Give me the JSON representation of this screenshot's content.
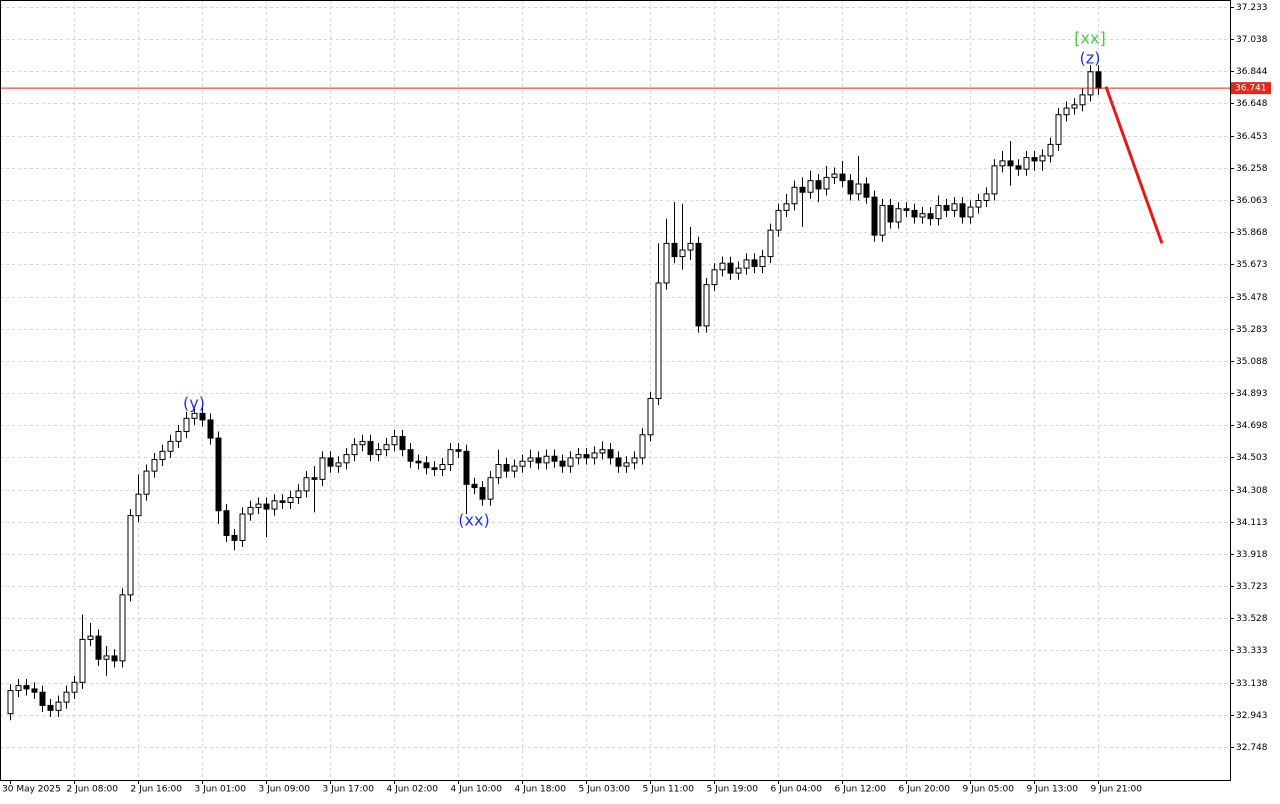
{
  "chart_data": {
    "type": "candlestick",
    "categories": [
      "30 May 2025",
      null,
      null,
      null,
      null,
      null,
      null,
      null,
      "2 Jun 08:00",
      null,
      null,
      null,
      null,
      null,
      null,
      null,
      "2 Jun 16:00",
      null,
      null,
      null,
      null,
      null,
      null,
      null,
      "3 Jun 01:00",
      null,
      null,
      null,
      null,
      null,
      null,
      null,
      "3 Jun 09:00",
      null,
      null,
      null,
      null,
      null,
      null,
      null,
      "3 Jun 17:00",
      null,
      null,
      null,
      null,
      null,
      null,
      null,
      "4 Jun 02:00",
      null,
      null,
      null,
      null,
      null,
      null,
      null,
      "4 Jun 10:00",
      null,
      null,
      null,
      null,
      null,
      null,
      null,
      "4 Jun 18:00",
      null,
      null,
      null,
      null,
      null,
      null,
      null,
      "5 Jun 03:00",
      null,
      null,
      null,
      null,
      null,
      null,
      null,
      "5 Jun 11:00",
      null,
      null,
      null,
      null,
      null,
      null,
      null,
      "5 Jun 19:00",
      null,
      null,
      null,
      null,
      null,
      null,
      null,
      "6 Jun 04:00",
      null,
      null,
      null,
      null,
      null,
      null,
      null,
      "6 Jun 12:00",
      null,
      null,
      null,
      null,
      null,
      null,
      null,
      "6 Jun 20:00",
      null,
      null,
      null,
      null,
      null,
      null,
      null,
      "9 Jun 05:00",
      null,
      null,
      null,
      null,
      null,
      null,
      null,
      "9 Jun 13:00",
      null,
      null,
      null,
      null,
      null,
      null,
      null,
      "9 Jun 21:00"
    ],
    "series": [
      {
        "color_up": "#ffffff",
        "color_down": "#000000",
        "values": [
          [
            32.95,
            33.13,
            32.91,
            33.09
          ],
          [
            33.09,
            33.16,
            33.05,
            33.12
          ],
          [
            33.12,
            33.16,
            33.06,
            33.1
          ],
          [
            33.1,
            33.14,
            33.04,
            33.08
          ],
          [
            33.08,
            33.12,
            32.96,
            33.0
          ],
          [
            33.0,
            33.04,
            32.93,
            32.97
          ],
          [
            32.97,
            33.06,
            32.93,
            33.02
          ],
          [
            33.02,
            33.12,
            32.98,
            33.08
          ],
          [
            33.08,
            33.18,
            33.04,
            33.14
          ],
          [
            33.14,
            33.55,
            33.1,
            33.4
          ],
          [
            33.4,
            33.5,
            33.36,
            33.42
          ],
          [
            33.42,
            33.46,
            33.24,
            33.28
          ],
          [
            33.28,
            33.36,
            33.18,
            33.3
          ],
          [
            33.3,
            33.34,
            33.23,
            33.27
          ],
          [
            33.27,
            33.71,
            33.23,
            33.67
          ],
          [
            33.67,
            34.19,
            33.63,
            34.15
          ],
          [
            34.15,
            34.4,
            34.11,
            34.28
          ],
          [
            34.28,
            34.46,
            34.24,
            34.42
          ],
          [
            34.42,
            34.53,
            34.38,
            34.49
          ],
          [
            34.49,
            34.58,
            34.45,
            34.54
          ],
          [
            34.54,
            34.64,
            34.5,
            34.6
          ],
          [
            34.6,
            34.7,
            34.56,
            34.66
          ],
          [
            34.66,
            34.78,
            34.62,
            34.74
          ],
          [
            34.74,
            34.8,
            34.7,
            34.77
          ],
          [
            34.77,
            34.81,
            34.69,
            34.73
          ],
          [
            34.73,
            34.77,
            34.58,
            34.62
          ],
          [
            34.62,
            34.66,
            34.1,
            34.18
          ],
          [
            34.18,
            34.22,
            33.99,
            34.03
          ],
          [
            34.03,
            34.07,
            33.94,
            34.0
          ],
          [
            34.0,
            34.2,
            33.96,
            34.16
          ],
          [
            34.16,
            34.24,
            34.12,
            34.2
          ],
          [
            34.2,
            34.26,
            34.16,
            34.22
          ],
          [
            34.22,
            34.26,
            34.02,
            34.19
          ],
          [
            34.19,
            34.28,
            34.15,
            34.24
          ],
          [
            34.24,
            34.28,
            34.19,
            34.23
          ],
          [
            34.23,
            34.3,
            34.19,
            34.26
          ],
          [
            34.26,
            34.34,
            34.22,
            34.3
          ],
          [
            34.3,
            34.42,
            34.26,
            34.38
          ],
          [
            34.38,
            34.45,
            34.17,
            34.37
          ],
          [
            34.37,
            34.54,
            34.33,
            34.5
          ],
          [
            34.5,
            34.54,
            34.41,
            34.45
          ],
          [
            34.45,
            34.51,
            34.41,
            34.47
          ],
          [
            34.47,
            34.56,
            34.43,
            34.52
          ],
          [
            34.52,
            34.62,
            34.48,
            34.58
          ],
          [
            34.58,
            34.64,
            34.54,
            34.6
          ],
          [
            34.6,
            34.64,
            34.48,
            34.52
          ],
          [
            34.52,
            34.59,
            34.48,
            34.55
          ],
          [
            34.55,
            34.62,
            34.51,
            34.58
          ],
          [
            34.58,
            34.67,
            34.54,
            34.63
          ],
          [
            34.63,
            34.67,
            34.51,
            34.55
          ],
          [
            34.55,
            34.59,
            34.44,
            34.48
          ],
          [
            34.48,
            34.52,
            34.43,
            34.47
          ],
          [
            34.47,
            34.51,
            34.4,
            34.44
          ],
          [
            34.44,
            34.48,
            34.39,
            34.43
          ],
          [
            34.43,
            34.5,
            34.39,
            34.46
          ],
          [
            34.46,
            34.59,
            34.42,
            34.55
          ],
          [
            34.55,
            34.59,
            34.5,
            34.54
          ],
          [
            34.54,
            34.58,
            34.16,
            34.34
          ],
          [
            34.34,
            34.38,
            34.28,
            34.32
          ],
          [
            34.32,
            34.36,
            34.21,
            34.25
          ],
          [
            34.25,
            34.42,
            34.21,
            34.38
          ],
          [
            34.38,
            34.55,
            34.34,
            34.46
          ],
          [
            34.46,
            34.5,
            34.38,
            34.42
          ],
          [
            34.42,
            34.49,
            34.38,
            34.45
          ],
          [
            34.45,
            34.52,
            34.41,
            34.48
          ],
          [
            34.48,
            34.55,
            34.44,
            34.5
          ],
          [
            34.5,
            34.54,
            34.43,
            34.47
          ],
          [
            34.47,
            34.55,
            34.43,
            34.51
          ],
          [
            34.51,
            34.55,
            34.44,
            34.48
          ],
          [
            34.48,
            34.52,
            34.41,
            34.45
          ],
          [
            34.45,
            34.54,
            34.41,
            34.5
          ],
          [
            34.5,
            34.56,
            34.46,
            34.52
          ],
          [
            34.52,
            34.56,
            34.46,
            34.5
          ],
          [
            34.5,
            34.57,
            34.46,
            34.53
          ],
          [
            34.53,
            34.6,
            34.49,
            34.55
          ],
          [
            34.55,
            34.59,
            34.46,
            34.5
          ],
          [
            34.5,
            34.54,
            34.41,
            34.45
          ],
          [
            34.45,
            34.51,
            34.41,
            34.47
          ],
          [
            34.47,
            34.54,
            34.43,
            34.5
          ],
          [
            34.5,
            34.68,
            34.46,
            34.64
          ],
          [
            34.64,
            34.9,
            34.6,
            34.86
          ],
          [
            34.86,
            35.8,
            34.82,
            35.56
          ],
          [
            35.56,
            35.95,
            35.52,
            35.8
          ],
          [
            35.8,
            36.05,
            35.68,
            35.72
          ],
          [
            35.72,
            36.04,
            35.64,
            35.76
          ],
          [
            35.76,
            35.9,
            35.7,
            35.8
          ],
          [
            35.8,
            35.84,
            35.26,
            35.3
          ],
          [
            35.3,
            35.59,
            35.26,
            35.55
          ],
          [
            35.55,
            35.68,
            35.51,
            35.64
          ],
          [
            35.64,
            35.72,
            35.6,
            35.68
          ],
          [
            35.68,
            35.72,
            35.58,
            35.62
          ],
          [
            35.62,
            35.69,
            35.58,
            35.65
          ],
          [
            35.65,
            35.74,
            35.61,
            35.7
          ],
          [
            35.7,
            35.74,
            35.62,
            35.66
          ],
          [
            35.66,
            35.76,
            35.62,
            35.72
          ],
          [
            35.72,
            35.92,
            35.68,
            35.88
          ],
          [
            35.88,
            36.04,
            35.84,
            36.0
          ],
          [
            36.0,
            36.1,
            35.96,
            36.04
          ],
          [
            36.04,
            36.18,
            36.0,
            36.14
          ],
          [
            36.14,
            36.2,
            35.9,
            36.11
          ],
          [
            36.11,
            36.24,
            36.07,
            36.18
          ],
          [
            36.18,
            36.22,
            36.05,
            36.13
          ],
          [
            36.13,
            36.27,
            36.09,
            36.2
          ],
          [
            36.2,
            36.26,
            36.16,
            36.22
          ],
          [
            36.22,
            36.3,
            36.14,
            36.18
          ],
          [
            36.18,
            36.22,
            36.06,
            36.1
          ],
          [
            36.1,
            36.33,
            36.06,
            36.16
          ],
          [
            36.16,
            36.2,
            36.04,
            36.08
          ],
          [
            36.08,
            36.12,
            35.81,
            35.85
          ],
          [
            35.85,
            36.07,
            35.81,
            36.03
          ],
          [
            36.03,
            36.07,
            35.89,
            35.93
          ],
          [
            35.93,
            36.05,
            35.89,
            36.01
          ],
          [
            36.01,
            36.05,
            35.96,
            36.0
          ],
          [
            36.0,
            36.04,
            35.92,
            35.96
          ],
          [
            35.96,
            36.02,
            35.92,
            35.98
          ],
          [
            35.98,
            36.02,
            35.91,
            35.95
          ],
          [
            35.95,
            36.09,
            35.91,
            36.03
          ],
          [
            36.03,
            36.07,
            35.96,
            36.0
          ],
          [
            36.0,
            36.08,
            35.96,
            36.04
          ],
          [
            36.04,
            36.08,
            35.92,
            35.96
          ],
          [
            35.96,
            36.06,
            35.92,
            36.02
          ],
          [
            36.02,
            36.1,
            35.98,
            36.06
          ],
          [
            36.06,
            36.14,
            36.02,
            36.1
          ],
          [
            36.1,
            36.31,
            36.06,
            36.27
          ],
          [
            36.27,
            36.36,
            36.23,
            36.3
          ],
          [
            36.3,
            36.42,
            36.15,
            36.27
          ],
          [
            36.27,
            36.31,
            36.21,
            36.25
          ],
          [
            36.25,
            36.36,
            36.21,
            36.32
          ],
          [
            36.32,
            36.36,
            36.24,
            36.3
          ],
          [
            36.3,
            36.37,
            36.24,
            36.33
          ],
          [
            36.33,
            36.44,
            36.29,
            36.4
          ],
          [
            36.4,
            36.62,
            36.36,
            36.58
          ],
          [
            36.58,
            36.66,
            36.54,
            36.62
          ],
          [
            36.62,
            36.68,
            36.58,
            36.64
          ],
          [
            36.64,
            36.74,
            36.6,
            36.7
          ],
          [
            36.7,
            36.88,
            36.66,
            36.84
          ],
          [
            36.84,
            36.88,
            36.7,
            36.74
          ]
        ]
      }
    ],
    "ylim": [
      32.548,
      37.275
    ],
    "yticks": [
      32.748,
      32.943,
      33.138,
      33.333,
      33.528,
      33.723,
      33.918,
      34.113,
      34.308,
      34.503,
      34.698,
      34.893,
      35.088,
      35.283,
      35.478,
      35.673,
      35.868,
      36.063,
      36.258,
      36.453,
      36.648,
      36.844,
      37.038,
      37.233
    ],
    "grid": true,
    "price_line": 36.741,
    "price_line_color": "#e0281e",
    "forecast": {
      "start": 36.75,
      "end": 35.8,
      "color": "#e41a1a"
    },
    "annotations": [
      {
        "text": "(y)",
        "color": "#2233dd"
      },
      {
        "text": "(xx)",
        "color": "#2233dd"
      },
      {
        "text": "(z)",
        "color": "#2233dd"
      },
      {
        "text": "[xx]",
        "color": "#4cc94c"
      }
    ]
  }
}
